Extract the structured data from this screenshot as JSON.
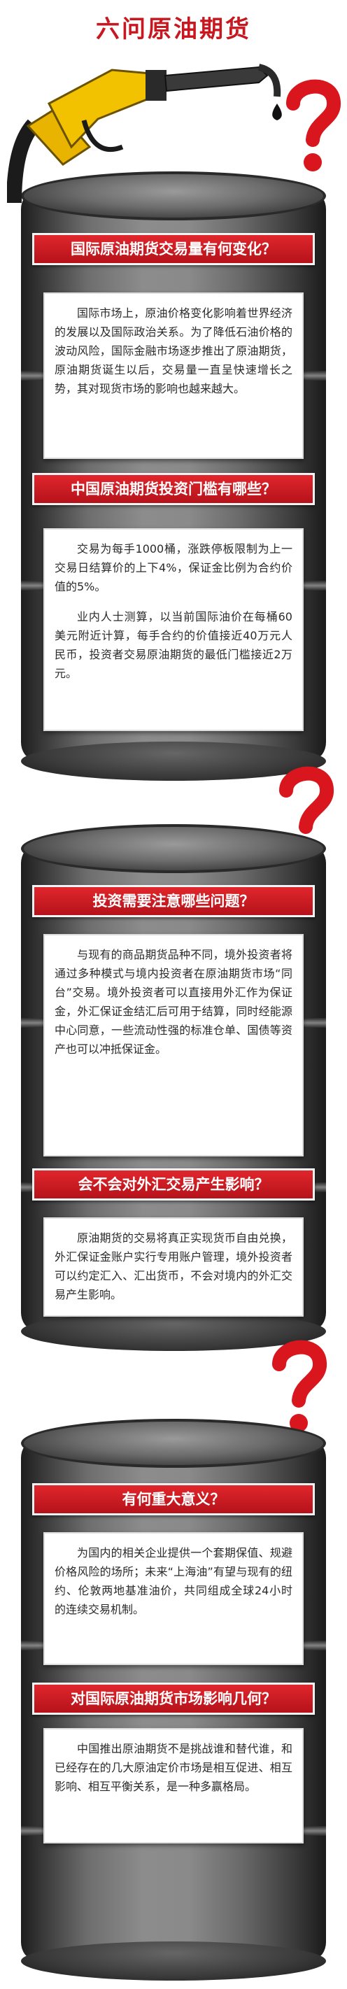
{
  "header": {
    "title": "六问原油期货"
  },
  "sections": [
    {
      "heading": "国际原油期货交易量有何变化？",
      "paragraphs": [
        "国际市场上，原油价格变化影响着世界经济的发展以及国际政治关系。为了降低石油价格的波动风险，国际金融市场逐步推出了原油期货，原油期货诞生以后，交易量一直呈快速增长之势，其对现货市场的影响也越来越大。"
      ]
    },
    {
      "heading": "中国原油期货投资门槛有哪些？",
      "paragraphs": [
        "交易为每手1000桶，涨跌停板限制为上一交易日结算价的上下4%，保证金比例为合约价值的5%。",
        "业内人士测算，以当前国际油价在每桶60美元附近计算，每手合约的价值接近40万元人民币，投资者交易原油期货的最低门槛接近2万元。"
      ]
    },
    {
      "heading": "投资需要注意哪些问题？",
      "paragraphs": [
        "与现有的商品期货品种不同，境外投资者将通过多种模式与境内投资者在原油期货市场“同台”交易。境外投资者可以直接用外汇作为保证金，外汇保证金结汇后可用于结算，同时经能源中心同意，一些流动性强的标准仓单、国债等资产也可以冲抵保证金。"
      ]
    },
    {
      "heading": "会不会对外汇交易产生影响？",
      "paragraphs": [
        "原油期货的交易将真正实现货币自由兑换，外汇保证金账户实行专用账户管理，境外投资者可以约定汇入、汇出货币，不会对境内的外汇交易产生影响。"
      ]
    },
    {
      "heading": "有何重大意义？",
      "paragraphs": [
        "为国内的相关企业提供一个套期保值、规避价格风险的场所；未来“上海油”有望与现有的纽约、伦敦两地基准油价，共同组成全球24小时的连续交易机制。"
      ]
    },
    {
      "heading": "对国际原油期货市场影响几何？",
      "paragraphs": [
        "中国推出原油期货不是挑战谁和替代谁，和已经存在的几大原油定价市场是相互促进、相互影响、相互平衡关系，是一种多赢格局。"
      ]
    }
  ],
  "colors": {
    "accent_red": "#c8171e",
    "barrel_gray": "#6e6e6e",
    "nozzle_yellow": "#e8b400"
  },
  "icons": [
    "fuel-nozzle-icon",
    "question-mark-icon",
    "oil-drop-icon"
  ]
}
